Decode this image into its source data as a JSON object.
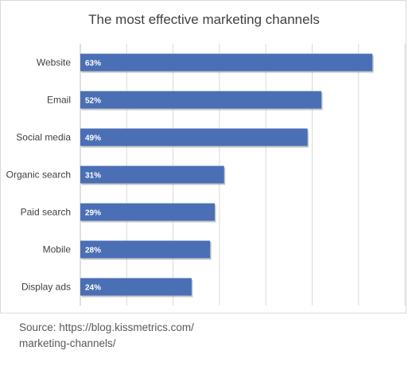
{
  "chart_data": {
    "type": "bar",
    "orientation": "horizontal",
    "title": "The most effective marketing channels",
    "categories": [
      "Website",
      "Email",
      "Social media",
      "Organic search",
      "Paid search",
      "Mobile",
      "Display ads"
    ],
    "values": [
      63,
      52,
      49,
      31,
      29,
      28,
      24
    ],
    "value_labels": [
      "63%",
      "52%",
      "49%",
      "31%",
      "29%",
      "28%",
      "24%"
    ],
    "unit": "%",
    "xlim": [
      0,
      70
    ],
    "grid": true,
    "legend": "none",
    "bar_color": "#4a6fb5"
  },
  "source": {
    "line1": "Source: https://blog.kissmetrics.com/",
    "line2": "marketing-channels/"
  }
}
